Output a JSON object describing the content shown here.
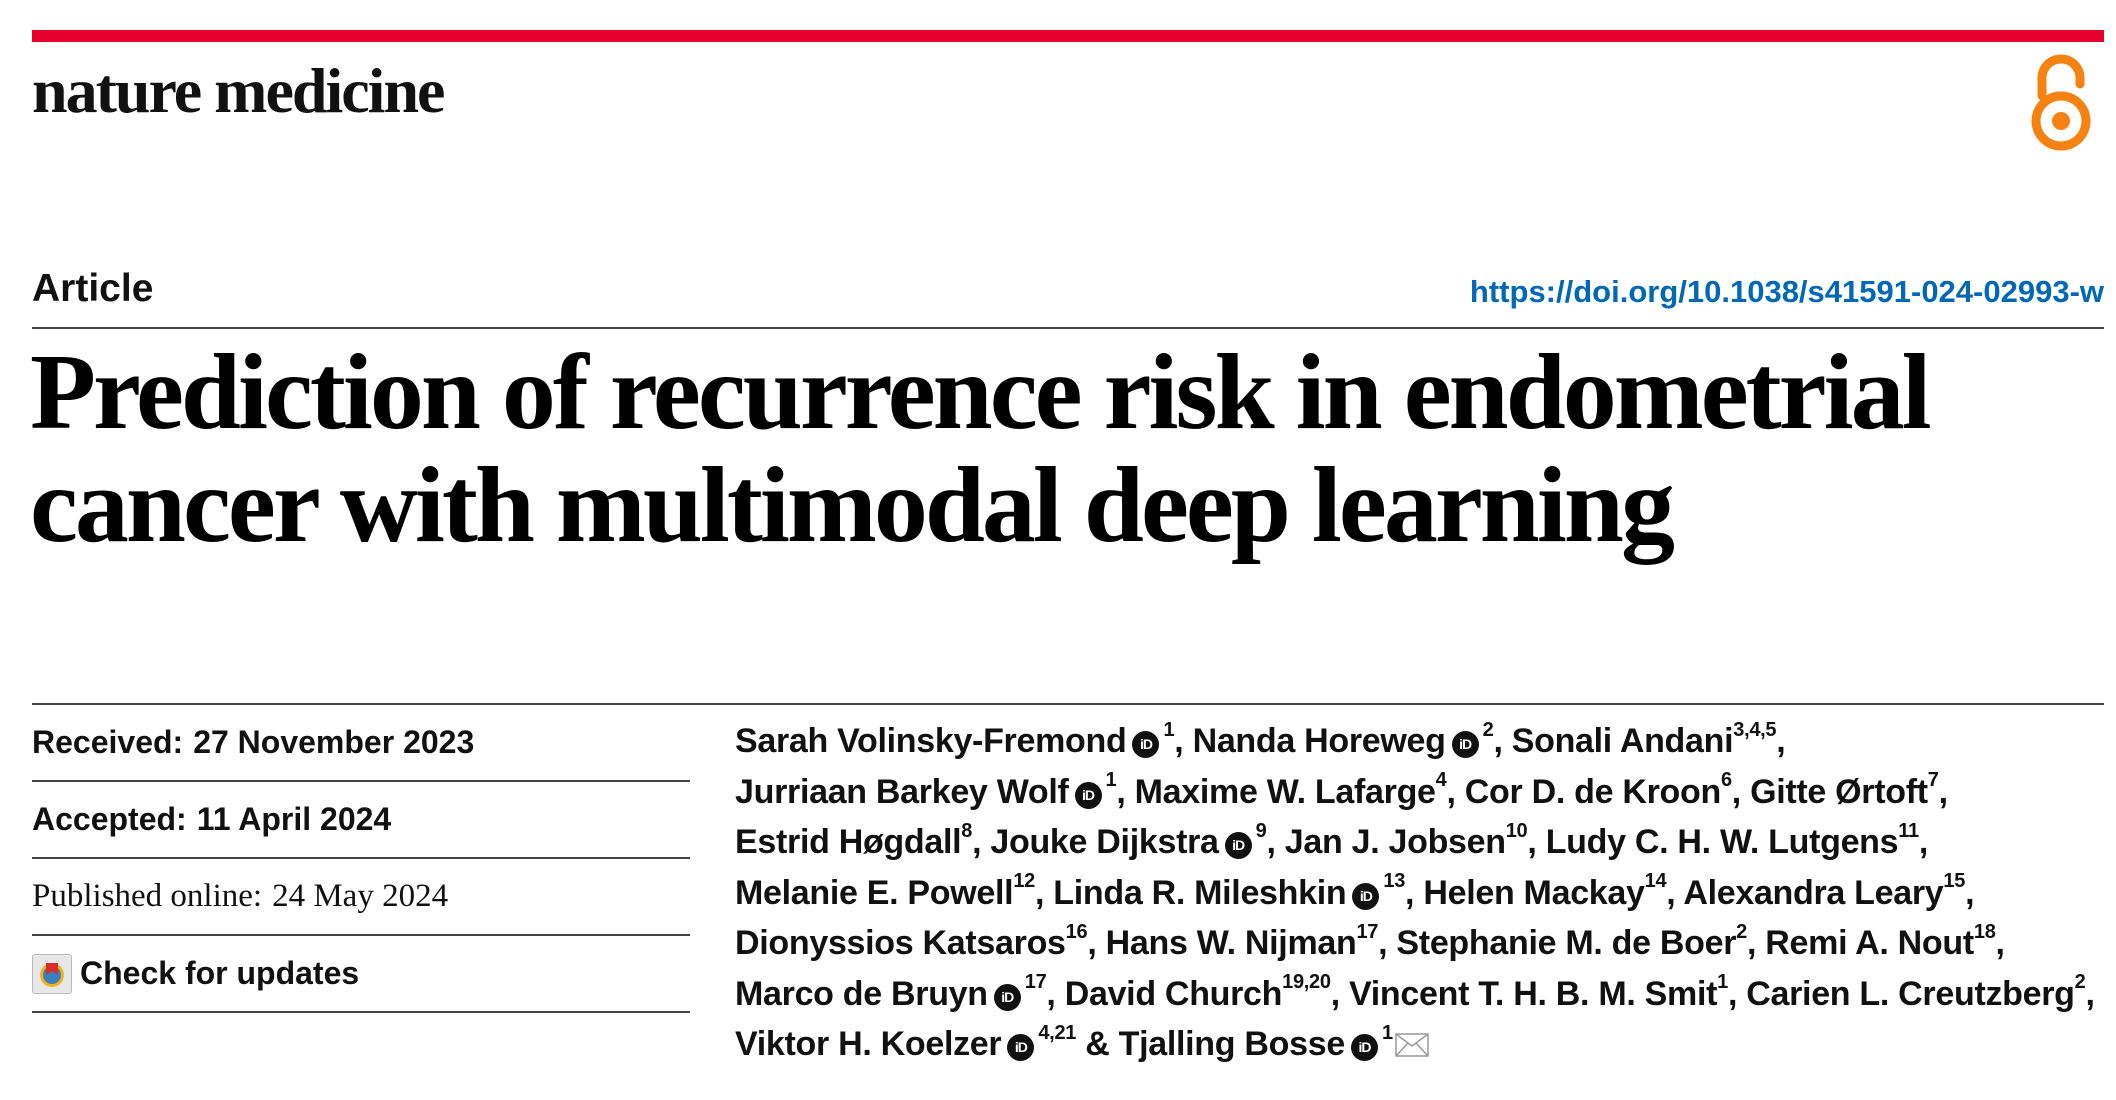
{
  "journal": {
    "name": "nature medicine",
    "accent_color": "#e4002b",
    "open_access_icon": "open-access-icon",
    "open_access_color": "#f68212"
  },
  "article": {
    "type": "Article",
    "doi": "https://doi.org/10.1038/s41591-024-02993-w",
    "title": "Prediction of recurrence risk in endometrial cancer with multimodal deep learning"
  },
  "meta": {
    "received_label": "Received:",
    "received_date": "27 November 2023",
    "accepted_label": "Accepted:",
    "accepted_date": "11 April 2024",
    "published_label": "Published online:",
    "published_date": "24 May 2024",
    "check_updates_label": "Check for updates"
  },
  "authors": [
    {
      "name": "Sarah Volinsky-Fremond",
      "orcid": true,
      "aff": "1"
    },
    {
      "name": "Nanda Horeweg",
      "orcid": true,
      "aff": "2"
    },
    {
      "name": "Sonali Andani",
      "orcid": false,
      "aff": "3,4,5"
    },
    {
      "name": "Jurriaan Barkey Wolf",
      "orcid": true,
      "aff": "1"
    },
    {
      "name": "Maxime W. Lafarge",
      "orcid": false,
      "aff": "4"
    },
    {
      "name": "Cor D. de Kroon",
      "orcid": false,
      "aff": "6"
    },
    {
      "name": "Gitte Ørtoft",
      "orcid": false,
      "aff": "7"
    },
    {
      "name": "Estrid Høgdall",
      "orcid": false,
      "aff": "8"
    },
    {
      "name": "Jouke Dijkstra",
      "orcid": true,
      "aff": "9"
    },
    {
      "name": "Jan J. Jobsen",
      "orcid": false,
      "aff": "10"
    },
    {
      "name": "Ludy C. H. W. Lutgens",
      "orcid": false,
      "aff": "11"
    },
    {
      "name": "Melanie E. Powell",
      "orcid": false,
      "aff": "12"
    },
    {
      "name": "Linda R. Mileshkin",
      "orcid": true,
      "aff": "13"
    },
    {
      "name": "Helen Mackay",
      "orcid": false,
      "aff": "14"
    },
    {
      "name": "Alexandra Leary",
      "orcid": false,
      "aff": "15"
    },
    {
      "name": "Dionyssios Katsaros",
      "orcid": false,
      "aff": "16"
    },
    {
      "name": "Hans W. Nijman",
      "orcid": false,
      "aff": "17"
    },
    {
      "name": "Stephanie M. de Boer",
      "orcid": false,
      "aff": "2"
    },
    {
      "name": "Remi A. Nout",
      "orcid": false,
      "aff": "18"
    },
    {
      "name": "Marco de Bruyn",
      "orcid": true,
      "aff": "17"
    },
    {
      "name": "David Church",
      "orcid": false,
      "aff": "19,20"
    },
    {
      "name": "Vincent T. H. B. M. Smit",
      "orcid": false,
      "aff": "1"
    },
    {
      "name": "Carien L. Creutzberg",
      "orcid": false,
      "aff": "2"
    },
    {
      "name": "Viktor H. Koelzer",
      "orcid": true,
      "aff": "4,21"
    },
    {
      "name": "Tjalling Bosse",
      "orcid": true,
      "aff": "1",
      "corresponding": true
    }
  ],
  "author_separator": ", ",
  "author_final_joiner": " & ",
  "orcid_badge_text": "iD"
}
